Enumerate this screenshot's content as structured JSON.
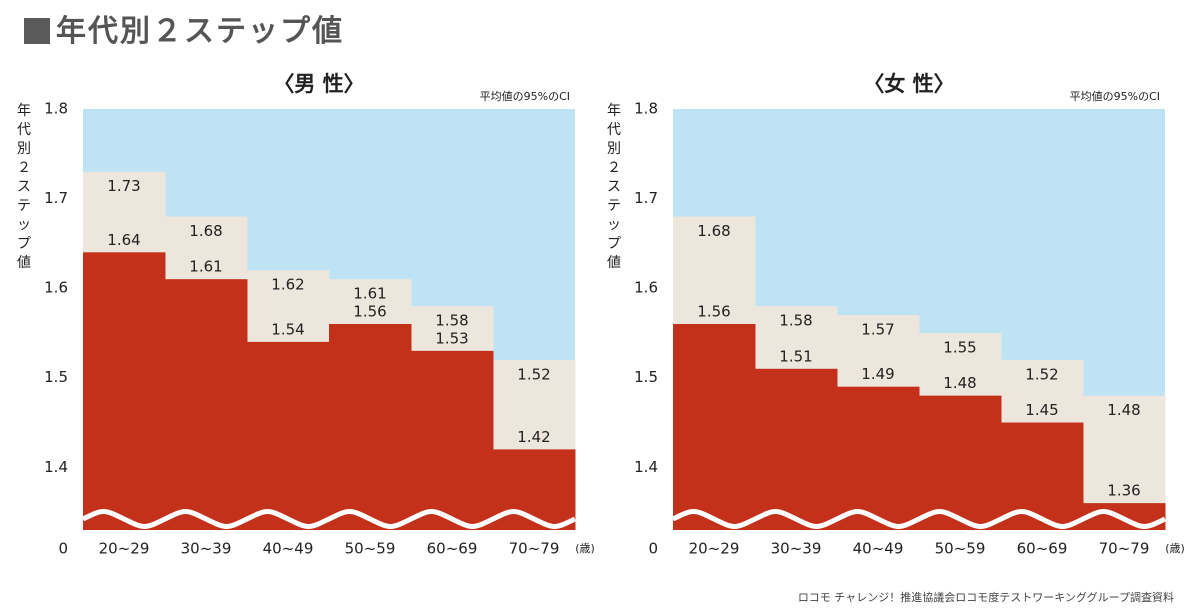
{
  "page": {
    "title_text": "年代別２ステップ値",
    "source": "ロコモ チャレンジ！推進協議会ロコモ度テストワーキンググループ調査資料"
  },
  "colors": {
    "sky": "#bde3f5",
    "ci_band": "#ede6dc",
    "mean_fill": "#c4311a",
    "wave": "#ffffff"
  },
  "chart_data": [
    {
      "type": "area",
      "title": "〈男 性〉",
      "ci_note": "平均値の95%のCI",
      "ylabel": "年代別２ステップ値",
      "categories": [
        "20~29",
        "30~39",
        "40~49",
        "50~59",
        "60~69",
        "70~79"
      ],
      "x_unit": "(歳)",
      "ylim": [
        1.33,
        1.8
      ],
      "yticks": [
        "1.8",
        "1.7",
        "1.6",
        "1.5",
        "1.4"
      ],
      "y_zero_label": "0",
      "axis_break": true,
      "series": [
        {
          "values": [
            1.64,
            1.61,
            1.54,
            1.56,
            1.53,
            1.42
          ]
        },
        {
          "values": [
            1.73,
            1.68,
            1.62,
            1.61,
            1.58,
            1.52
          ]
        }
      ]
    },
    {
      "type": "area",
      "title": "〈女 性〉",
      "ci_note": "平均値の95%のCI",
      "ylabel": "年代別２ステップ値",
      "categories": [
        "20~29",
        "30~39",
        "40~49",
        "50~59",
        "60~69",
        "70~79"
      ],
      "x_unit": "(歳)",
      "ylim": [
        1.33,
        1.8
      ],
      "yticks": [
        "1.8",
        "1.7",
        "1.6",
        "1.5",
        "1.4"
      ],
      "y_zero_label": "0",
      "axis_break": true,
      "series": [
        {
          "values": [
            1.56,
            1.51,
            1.49,
            1.48,
            1.45,
            1.36
          ]
        },
        {
          "values": [
            1.68,
            1.58,
            1.57,
            1.55,
            1.52,
            1.48
          ]
        }
      ]
    }
  ]
}
